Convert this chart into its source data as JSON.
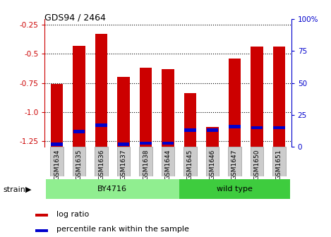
{
  "title": "GDS94 / 2464",
  "samples": [
    "GSM1634",
    "GSM1635",
    "GSM1636",
    "GSM1637",
    "GSM1638",
    "GSM1644",
    "GSM1645",
    "GSM1646",
    "GSM1647",
    "GSM1650",
    "GSM1651"
  ],
  "log_ratios": [
    -0.76,
    -0.43,
    -0.33,
    -0.7,
    -0.62,
    -0.63,
    -0.84,
    -1.13,
    -0.54,
    -0.44,
    -0.44
  ],
  "percentile_ranks": [
    2,
    12,
    17,
    2,
    3,
    3,
    13,
    13,
    16,
    15,
    15
  ],
  "ylim_left": [
    -1.3,
    -0.2
  ],
  "ylim_right": [
    0,
    100
  ],
  "yticks_left": [
    -1.25,
    -1.0,
    -0.75,
    -0.5,
    -0.25
  ],
  "yticks_right": [
    0,
    25,
    50,
    75,
    100
  ],
  "groups": [
    {
      "label": "BY4716",
      "start": 0,
      "end": 6,
      "color": "#90EE90"
    },
    {
      "label": "wild type",
      "start": 6,
      "end": 11,
      "color": "#3ECC3E"
    }
  ],
  "bar_color": "#CC0000",
  "percentile_color": "#0000CC",
  "grid_color": "#000000",
  "background_color": "#FFFFFF",
  "left_label_color": "#CC0000",
  "right_label_color": "#0000CC",
  "bar_width": 0.55,
  "legend_log_ratio": "log ratio",
  "legend_percentile": "percentile rank within the sample",
  "strain_label": "strain"
}
